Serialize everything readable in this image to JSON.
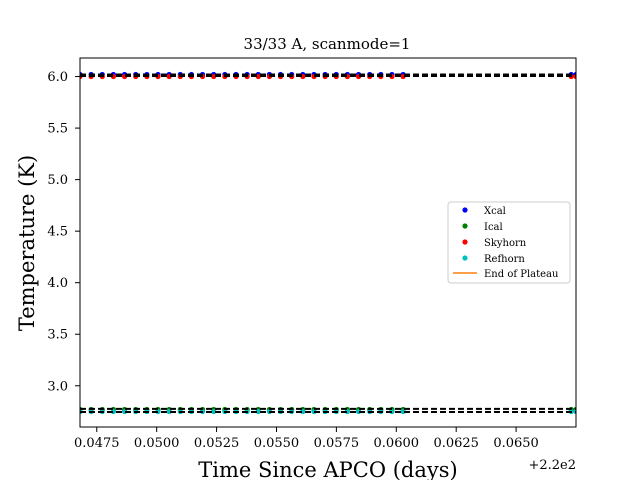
{
  "chart_data": {
    "type": "scatter",
    "title": "33/33 A, scanmode=1",
    "xlabel": "Time Since APCO (days)",
    "ylabel": "Temperature (K)",
    "x_offset_label": "+2.2e2",
    "xlim": [
      0.0468,
      0.0675
    ],
    "ylim": [
      2.6,
      6.18
    ],
    "xticks": [
      0.0475,
      0.05,
      0.0525,
      0.055,
      0.0575,
      0.06,
      0.0625,
      0.065
    ],
    "xtick_labels": [
      "0.0475",
      "0.0500",
      "0.0525",
      "0.0550",
      "0.0575",
      "0.0600",
      "0.0625",
      "0.0650"
    ],
    "yticks": [
      3.0,
      3.5,
      4.0,
      4.5,
      5.0,
      5.5,
      6.0
    ],
    "ytick_labels": [
      "3.0",
      "3.5",
      "4.0",
      "4.5",
      "5.0",
      "5.5",
      "6.0"
    ],
    "grid": false,
    "legend_position": "center-right",
    "x_first": 0.0468,
    "x_step": 0.000465,
    "x_count": 30,
    "x_late": [
      0.0673,
      0.0675
    ],
    "series": [
      {
        "name": "Xcal",
        "color": "#0000ff",
        "value": 6.02
      },
      {
        "name": "Ical",
        "color": "#008000",
        "value": 2.77
      },
      {
        "name": "Skyhorn",
        "color": "#ff0000",
        "value": 6.0
      },
      {
        "name": "Refhorn",
        "color": "#00bfbf",
        "value": 2.75
      }
    ],
    "plateau_line": {
      "name": "End of Plateau",
      "color": "#ff7f0e"
    },
    "reference_lines": {
      "color": "#000000",
      "values": [
        6.02,
        6.005,
        2.776,
        2.746
      ]
    }
  }
}
